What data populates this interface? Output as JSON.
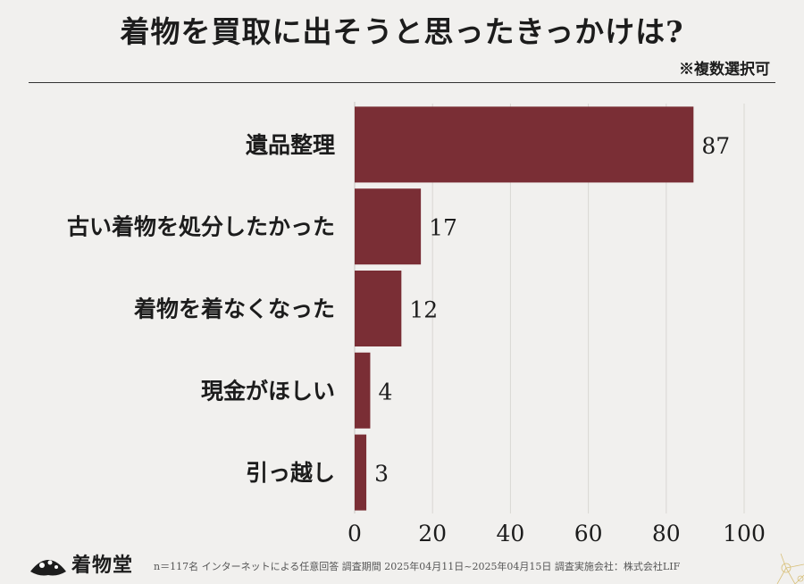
{
  "header": {
    "title": "着物を買取に出そうと思ったきっかけは?",
    "note": "※複数選択可"
  },
  "chart_data": {
    "type": "bar",
    "orientation": "horizontal",
    "title": "着物を買取に出そうと思ったきっかけは?",
    "categories": [
      "遺品整理",
      "古い着物を処分したかった",
      "着物を着なくなった",
      "現金がほしい",
      "引っ越し"
    ],
    "values": [
      87,
      17,
      12,
      4,
      3
    ],
    "xlim": [
      0,
      100
    ],
    "xticks": [
      0,
      20,
      40,
      60,
      80,
      100
    ],
    "xlabel": "",
    "ylabel": "",
    "grid": true,
    "bar_color": "#7a2e35"
  },
  "footer": {
    "brand": "着物堂",
    "text": "n＝117名 インターネットによる任意回答 調査期間 2025年04月11日~2025年04月15日 調査実施会社：株式会社LIF"
  }
}
